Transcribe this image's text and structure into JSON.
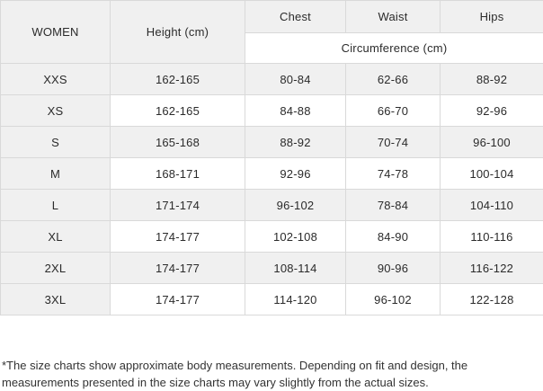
{
  "table": {
    "corner_label": "WOMEN",
    "height_label": "Height (cm)",
    "measure_columns": [
      "Chest",
      "Waist",
      "Hips"
    ],
    "subheader": "Circumference (cm)",
    "rows": [
      {
        "size": "XXS",
        "height": "162-165",
        "chest": "80-84",
        "waist": "62-66",
        "hips": "88-92"
      },
      {
        "size": "XS",
        "height": "162-165",
        "chest": "84-88",
        "waist": "66-70",
        "hips": "92-96"
      },
      {
        "size": "S",
        "height": "165-168",
        "chest": "88-92",
        "waist": "70-74",
        "hips": "96-100"
      },
      {
        "size": "M",
        "height": "168-171",
        "chest": "92-96",
        "waist": "74-78",
        "hips": "100-104"
      },
      {
        "size": "L",
        "height": "171-174",
        "chest": "96-102",
        "waist": "78-84",
        "hips": "104-110"
      },
      {
        "size": "XL",
        "height": "174-177",
        "chest": "102-108",
        "waist": "84-90",
        "hips": "110-116"
      },
      {
        "size": "2XL",
        "height": "174-177",
        "chest": "108-114",
        "waist": "90-96",
        "hips": "116-122"
      },
      {
        "size": "3XL",
        "height": "174-177",
        "chest": "114-120",
        "waist": "96-102",
        "hips": "122-128"
      }
    ]
  },
  "footnote": "*The size charts show approximate body measurements. Depending on fit and design, the measurements presented in the size charts may vary slightly from the actual sizes.",
  "colors": {
    "row_alt_background": "#f0f0f0",
    "border": "#d9d9d9",
    "text": "#2b2b2b"
  }
}
